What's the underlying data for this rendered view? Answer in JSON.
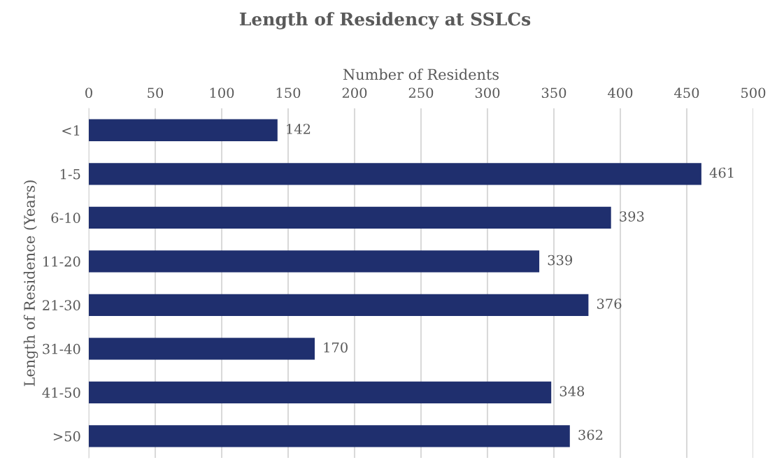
{
  "chart_data": {
    "type": "bar",
    "orientation": "horizontal",
    "title": "Length of Residency at SSLCs",
    "xlabel": "Number of Residents",
    "ylabel": "Length of Residence (Years)",
    "categories": [
      "<1",
      "1-5",
      "6-10",
      "11-20",
      "21-30",
      "31-40",
      "41-50",
      ">50"
    ],
    "values": [
      142,
      461,
      393,
      339,
      376,
      170,
      348,
      362
    ],
    "color": "#1f2f6e",
    "xlim": [
      0,
      500
    ],
    "xticks": [
      0,
      50,
      100,
      150,
      200,
      250,
      300,
      350,
      400,
      450,
      500
    ],
    "grid": "x",
    "data_labels": true
  }
}
